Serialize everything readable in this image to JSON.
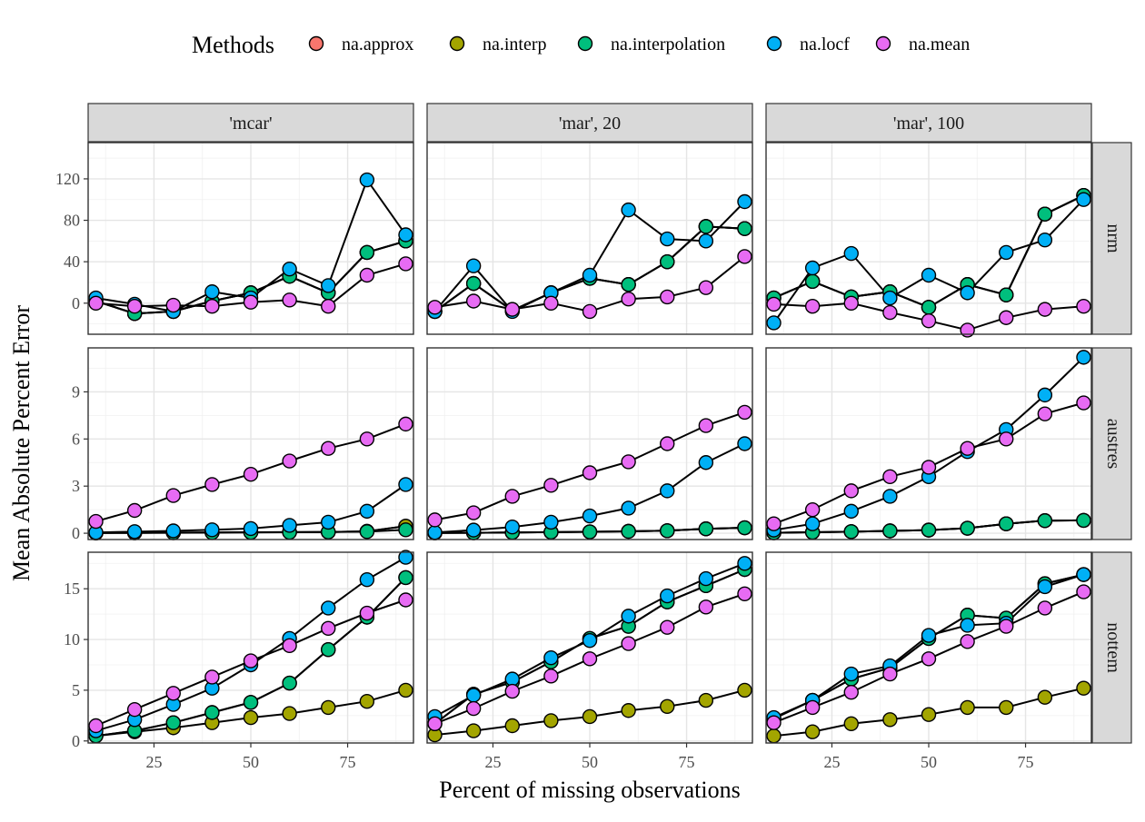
{
  "legend": {
    "title": "Methods",
    "items": [
      {
        "label": "na.approx",
        "color": "#F8766D"
      },
      {
        "label": "na.interp",
        "color": "#A3A500"
      },
      {
        "label": "na.interpolation",
        "color": "#00BF7D"
      },
      {
        "label": "na.locf",
        "color": "#00B0F6"
      },
      {
        "label": "na.mean",
        "color": "#E76BF3"
      }
    ]
  },
  "chart_data": {
    "type": "line",
    "xlabel": "Percent of missing observations",
    "ylabel": "Mean Absolute Percent Error",
    "x": [
      10,
      20,
      30,
      40,
      50,
      60,
      70,
      80,
      90
    ],
    "xlim": [
      8,
      92
    ],
    "xticks": [
      25,
      50,
      75
    ],
    "columns": [
      "'mcar'",
      "'mar', 20",
      "'mar', 100"
    ],
    "rows": [
      {
        "label": "nrm",
        "ylim": [
          -30,
          155
        ],
        "yticks": [
          0,
          40,
          80,
          120
        ]
      },
      {
        "label": "austres",
        "ylim": [
          -0.4,
          11.8
        ],
        "yticks": [
          0,
          3,
          6,
          9
        ]
      },
      {
        "label": "nottem",
        "ylim": [
          -0.2,
          18.6
        ],
        "yticks": [
          0,
          5,
          10,
          15
        ]
      }
    ],
    "grid": true,
    "legend_position": "top",
    "panels": [
      {
        "row": "nrm",
        "col": "'mcar'",
        "series": [
          {
            "name": "na.approx",
            "values": [
              2,
              -10,
              -8,
              2,
              10,
              26,
              10,
              49,
              60
            ]
          },
          {
            "name": "na.interp",
            "values": [
              2,
              -10,
              -8,
              2,
              10,
              26,
              10,
              49,
              60
            ]
          },
          {
            "name": "na.interpolation",
            "values": [
              2,
              -10,
              -8,
              2,
              10,
              26,
              10,
              49,
              60
            ]
          },
          {
            "name": "na.locf",
            "values": [
              5,
              -1,
              -8,
              11,
              5,
              33,
              17,
              119,
              66
            ]
          },
          {
            "name": "na.mean",
            "values": [
              0,
              -3,
              -2,
              -3,
              1,
              3,
              -3,
              27,
              38
            ]
          }
        ]
      },
      {
        "row": "nrm",
        "col": "'mar', 20",
        "series": [
          {
            "name": "na.approx",
            "values": [
              -8,
              19,
              -7,
              10,
              24,
              18,
              40,
              74,
              72
            ]
          },
          {
            "name": "na.interp",
            "values": [
              -8,
              19,
              -7,
              10,
              24,
              18,
              40,
              74,
              72
            ]
          },
          {
            "name": "na.interpolation",
            "values": [
              -8,
              19,
              -7,
              10,
              24,
              18,
              40,
              74,
              72
            ]
          },
          {
            "name": "na.locf",
            "values": [
              -8,
              36,
              -8,
              10,
              27,
              90,
              62,
              60,
              98
            ]
          },
          {
            "name": "na.mean",
            "values": [
              -4,
              2,
              -6,
              0,
              -8,
              4,
              6,
              15,
              45
            ]
          }
        ]
      },
      {
        "row": "nrm",
        "col": "'mar', 100",
        "series": [
          {
            "name": "na.approx",
            "values": [
              5,
              21,
              6,
              11,
              -4,
              18,
              8,
              86,
              104
            ]
          },
          {
            "name": "na.interp",
            "values": [
              5,
              21,
              6,
              11,
              -4,
              18,
              8,
              86,
              104
            ]
          },
          {
            "name": "na.interpolation",
            "values": [
              5,
              21,
              6,
              11,
              -4,
              18,
              8,
              86,
              104
            ]
          },
          {
            "name": "na.locf",
            "values": [
              -19,
              34,
              48,
              5,
              27,
              10,
              49,
              61,
              100
            ]
          },
          {
            "name": "na.mean",
            "values": [
              -1,
              -3,
              0,
              -9,
              -17,
              -26,
              -14,
              -6,
              -3
            ]
          }
        ]
      },
      {
        "row": "austres",
        "col": "'mcar'",
        "series": [
          {
            "name": "na.approx",
            "values": [
              0.02,
              0.03,
              0.04,
              0.05,
              0.06,
              0.07,
              0.08,
              0.12,
              0.45
            ]
          },
          {
            "name": "na.interp",
            "values": [
              0.02,
              0.03,
              0.04,
              0.05,
              0.06,
              0.07,
              0.08,
              0.12,
              0.45
            ]
          },
          {
            "name": "na.interpolation",
            "values": [
              0.01,
              0.02,
              0.03,
              0.04,
              0.05,
              0.06,
              0.08,
              0.1,
              0.22
            ]
          },
          {
            "name": "na.locf",
            "values": [
              0.05,
              0.1,
              0.15,
              0.22,
              0.3,
              0.5,
              0.7,
              1.4,
              3.1
            ]
          },
          {
            "name": "na.mean",
            "values": [
              0.75,
              1.45,
              2.4,
              3.1,
              3.75,
              4.6,
              5.4,
              6.0,
              6.95
            ]
          }
        ]
      },
      {
        "row": "austres",
        "col": "'mar', 20",
        "series": [
          {
            "name": "na.approx",
            "values": [
              0.02,
              0.03,
              0.05,
              0.07,
              0.09,
              0.12,
              0.16,
              0.28,
              0.35
            ]
          },
          {
            "name": "na.interp",
            "values": [
              0.02,
              0.03,
              0.05,
              0.07,
              0.09,
              0.12,
              0.16,
              0.28,
              0.35
            ]
          },
          {
            "name": "na.interpolation",
            "values": [
              0.02,
              0.03,
              0.05,
              0.07,
              0.09,
              0.12,
              0.16,
              0.28,
              0.35
            ]
          },
          {
            "name": "na.locf",
            "values": [
              0.05,
              0.2,
              0.4,
              0.7,
              1.1,
              1.6,
              2.7,
              4.5,
              5.7
            ]
          },
          {
            "name": "na.mean",
            "values": [
              0.85,
              1.3,
              2.35,
              3.05,
              3.85,
              4.55,
              5.7,
              6.85,
              7.7
            ]
          }
        ]
      },
      {
        "row": "austres",
        "col": "'mar', 100",
        "series": [
          {
            "name": "na.approx",
            "values": [
              0.03,
              0.06,
              0.1,
              0.15,
              0.2,
              0.32,
              0.6,
              0.8,
              0.82
            ]
          },
          {
            "name": "na.interp",
            "values": [
              0.03,
              0.06,
              0.1,
              0.15,
              0.2,
              0.32,
              0.6,
              0.8,
              0.82
            ]
          },
          {
            "name": "na.interpolation",
            "values": [
              0.03,
              0.06,
              0.1,
              0.15,
              0.2,
              0.32,
              0.6,
              0.8,
              0.82
            ]
          },
          {
            "name": "na.locf",
            "values": [
              0.2,
              0.6,
              1.4,
              2.35,
              3.6,
              5.2,
              6.6,
              8.8,
              11.2
            ]
          },
          {
            "name": "na.mean",
            "values": [
              0.6,
              1.5,
              2.7,
              3.6,
              4.2,
              5.4,
              6.0,
              7.6,
              8.3
            ]
          }
        ]
      },
      {
        "row": "nottem",
        "col": "'mcar'",
        "series": [
          {
            "name": "na.approx",
            "values": [
              0.5,
              1.0,
              1.8,
              2.8,
              3.8,
              5.7,
              9.0,
              12.2,
              16.1
            ]
          },
          {
            "name": "na.interp",
            "values": [
              0.5,
              0.9,
              1.3,
              1.8,
              2.3,
              2.7,
              3.3,
              3.9,
              5.0
            ]
          },
          {
            "name": "na.interpolation",
            "values": [
              0.5,
              1.0,
              1.8,
              2.8,
              3.8,
              5.7,
              9.0,
              12.2,
              16.1
            ]
          },
          {
            "name": "na.locf",
            "values": [
              1.0,
              2.1,
              3.6,
              5.2,
              7.5,
              10.1,
              13.1,
              15.9,
              18.1
            ]
          },
          {
            "name": "na.mean",
            "values": [
              1.5,
              3.1,
              4.7,
              6.3,
              7.9,
              9.4,
              11.1,
              12.6,
              13.9
            ]
          }
        ]
      },
      {
        "row": "nottem",
        "col": "'mar', 20",
        "series": [
          {
            "name": "na.approx",
            "values": [
              1.7,
              4.6,
              5.8,
              7.8,
              10.1,
              11.3,
              13.7,
              15.3,
              16.9
            ]
          },
          {
            "name": "na.interp",
            "values": [
              0.6,
              1.0,
              1.5,
              2.0,
              2.4,
              3.0,
              3.4,
              4.0,
              5.0
            ]
          },
          {
            "name": "na.interpolation",
            "values": [
              1.7,
              4.6,
              5.8,
              7.8,
              10.1,
              11.3,
              13.7,
              15.3,
              16.9
            ]
          },
          {
            "name": "na.locf",
            "values": [
              2.4,
              4.5,
              6.1,
              8.2,
              9.9,
              12.3,
              14.3,
              16.0,
              17.5
            ]
          },
          {
            "name": "na.mean",
            "values": [
              1.7,
              3.2,
              4.9,
              6.4,
              8.1,
              9.6,
              11.2,
              13.2,
              14.5
            ]
          }
        ]
      },
      {
        "row": "nottem",
        "col": "'mar', 100",
        "series": [
          {
            "name": "na.approx",
            "values": [
              2.2,
              4.0,
              6.1,
              7.2,
              10.1,
              12.4,
              12.1,
              15.5,
              16.4
            ]
          },
          {
            "name": "na.interp",
            "values": [
              0.5,
              0.9,
              1.7,
              2.1,
              2.6,
              3.3,
              3.3,
              4.3,
              5.2
            ]
          },
          {
            "name": "na.interpolation",
            "values": [
              2.2,
              4.0,
              6.1,
              7.2,
              10.1,
              12.4,
              12.1,
              15.5,
              16.4
            ]
          },
          {
            "name": "na.locf",
            "values": [
              2.3,
              4.0,
              6.6,
              7.4,
              10.4,
              11.4,
              11.6,
              15.2,
              16.4
            ]
          },
          {
            "name": "na.mean",
            "values": [
              1.8,
              3.3,
              4.8,
              6.6,
              8.1,
              9.8,
              11.3,
              13.1,
              14.7
            ]
          }
        ]
      }
    ]
  }
}
